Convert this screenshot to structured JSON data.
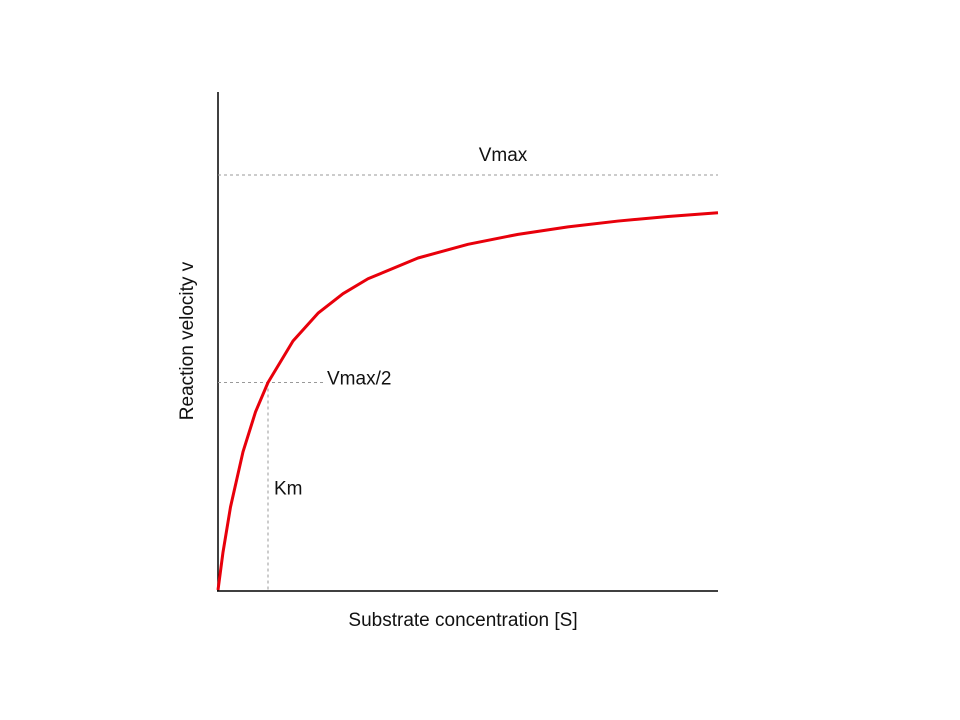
{
  "chart_data": {
    "type": "line",
    "x_label": "Substrate concentration [S]",
    "y_label": "Reaction velocity v",
    "x": [
      0,
      0.1,
      0.25,
      0.5,
      0.75,
      1,
      1.5,
      2,
      2.5,
      3,
      4,
      5,
      6,
      7,
      8,
      9,
      10
    ],
    "series": [
      {
        "color": "#e8000b",
        "values": [
          0,
          0.091,
          0.2,
          0.333,
          0.429,
          0.5,
          0.6,
          0.667,
          0.714,
          0.75,
          0.8,
          0.833,
          0.857,
          0.875,
          0.889,
          0.9,
          0.909
        ]
      }
    ],
    "xlim": [
      0,
      10
    ],
    "ylim": [
      0,
      1.2
    ],
    "reference_lines": [
      {
        "label": "Vmax",
        "y": 1
      },
      {
        "label": "Vmax/2",
        "y": 0.5
      },
      {
        "label": "Km",
        "x": 1
      }
    ]
  }
}
